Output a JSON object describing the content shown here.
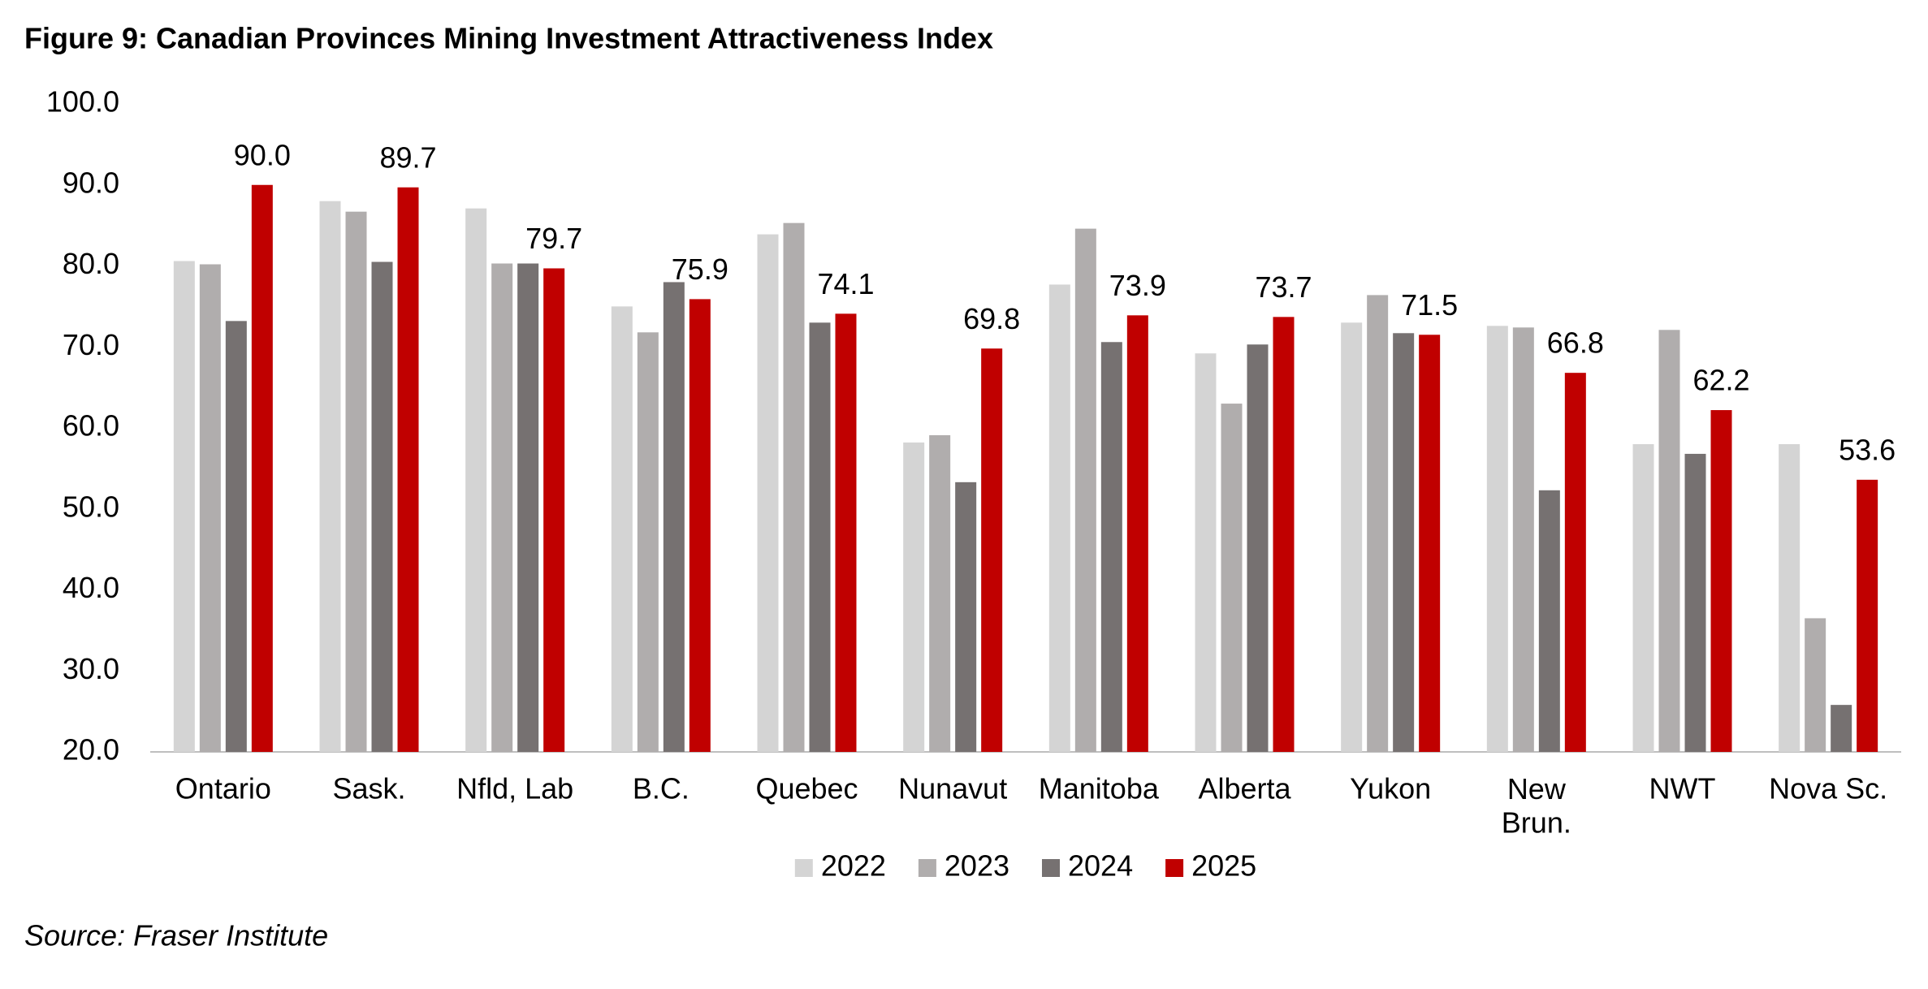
{
  "chart_data": {
    "type": "bar",
    "title": "Figure 9: Canadian Provinces Mining Investment Attractiveness Index",
    "source": "Source: Fraser Institute",
    "categories": [
      "Ontario",
      "Sask.",
      "Nfld, Lab",
      "B.C.",
      "Quebec",
      "Nunavut",
      "Manitoba",
      "Alberta",
      "Yukon",
      "New Brun.",
      "NWT",
      "Nova Sc."
    ],
    "series": [
      {
        "name": "2022",
        "color": "#d4d4d4",
        "values": [
          80.6,
          88.0,
          87.1,
          75.0,
          83.9,
          58.2,
          77.7,
          69.2,
          73.0,
          72.6,
          58.0,
          58.0
        ]
      },
      {
        "name": "2023",
        "color": "#b0adad",
        "values": [
          80.2,
          86.7,
          80.3,
          71.8,
          85.3,
          59.1,
          84.6,
          63.0,
          76.4,
          72.4,
          72.1,
          36.5
        ]
      },
      {
        "name": "2024",
        "color": "#767171",
        "values": [
          73.2,
          80.5,
          80.3,
          78.0,
          73.0,
          53.3,
          70.6,
          70.3,
          71.7,
          52.3,
          56.8,
          25.8
        ]
      },
      {
        "name": "2025",
        "color": "#c00000",
        "values": [
          90.0,
          89.7,
          79.7,
          75.9,
          74.1,
          69.8,
          73.9,
          73.7,
          71.5,
          66.8,
          62.2,
          53.6
        ],
        "value_labels": [
          "90.0",
          "89.7",
          "79.7",
          "75.9",
          "74.1",
          "69.8",
          "73.9",
          "73.7",
          "71.5",
          "66.8",
          "62.2",
          "53.6"
        ]
      }
    ],
    "ylim": [
      20,
      100
    ],
    "yticks": [
      {
        "value": 20,
        "label": "20.0"
      },
      {
        "value": 30,
        "label": "30.0"
      },
      {
        "value": 40,
        "label": "40.0"
      },
      {
        "value": 50,
        "label": "50.0"
      },
      {
        "value": 60,
        "label": "60.0"
      },
      {
        "value": 70,
        "label": "70.0"
      },
      {
        "value": 80,
        "label": "80.0"
      },
      {
        "value": 90,
        "label": "90.0"
      },
      {
        "value": 100,
        "label": "100.0"
      }
    ],
    "grid": false,
    "legend": "bottom"
  }
}
